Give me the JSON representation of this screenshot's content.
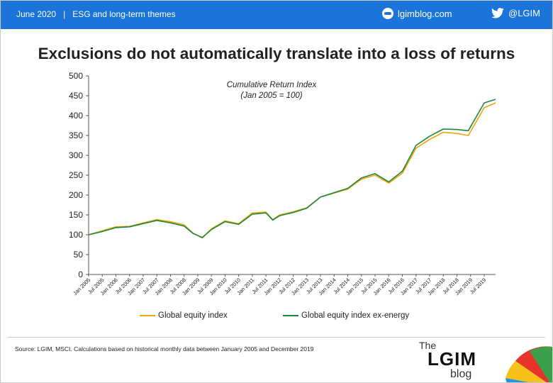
{
  "header": {
    "date": "June 2020",
    "separator": "|",
    "section": "ESG and long-term themes",
    "site": "lgimblog.com",
    "twitter": "@LGIM"
  },
  "title": "Exclusions do not automatically translate into a loss of returns",
  "footer": {
    "source": "Source: LGIM, MSCI. Calculations based on historical monthly data between January 2005 and December 2019",
    "brand_the": "The",
    "brand_lgim": "LGIM",
    "brand_blog": "blog"
  },
  "chart_data": {
    "type": "line",
    "title": "Cumulative Return Index",
    "subtitle": "(Jan 2005 = 100)",
    "xlabel": "",
    "ylabel": "",
    "ylim": [
      0,
      500
    ],
    "yticks": [
      0,
      50,
      100,
      150,
      200,
      250,
      300,
      350,
      400,
      450,
      500
    ],
    "xlim": [
      "2005-01",
      "2019-12"
    ],
    "xtick_labels": [
      "Jan 2005",
      "Jul 2005",
      "Jan 2006",
      "Jul 2006",
      "Jan 2007",
      "Jul 2007",
      "Jan 2008",
      "Jul 2008",
      "Jan 2009",
      "Jul 2009",
      "Jan 2010",
      "Jul 2010",
      "Jan 2011",
      "Jul 2011",
      "Jan 2012",
      "Jul 2012",
      "Jan 2013",
      "Jul 2013",
      "Jan 2014",
      "Jul 2014",
      "Jan 2015",
      "Jul 2015",
      "Jan 2016",
      "Jul 2016",
      "Jan 2017",
      "Jul 2017",
      "Jan 2018",
      "Jul 2018",
      "Jan 2019",
      "Jul 2019"
    ],
    "grid": false,
    "legend_position": "bottom",
    "colors": {
      "global": "#f0a30a",
      "ex_energy": "#1a8a3a"
    },
    "series": [
      {
        "name": "Global equity index",
        "x": [
          "2005-01",
          "2005-07",
          "2006-01",
          "2006-07",
          "2007-01",
          "2007-07",
          "2008-01",
          "2008-07",
          "2008-11",
          "2009-03",
          "2009-07",
          "2010-01",
          "2010-07",
          "2011-01",
          "2011-07",
          "2011-10",
          "2012-01",
          "2012-07",
          "2013-01",
          "2013-07",
          "2014-01",
          "2014-07",
          "2015-01",
          "2015-07",
          "2016-01",
          "2016-07",
          "2017-01",
          "2017-07",
          "2018-01",
          "2018-07",
          "2018-12",
          "2019-07",
          "2019-12"
        ],
        "values": [
          100,
          110,
          120,
          121,
          130,
          138,
          133,
          125,
          104,
          92,
          115,
          135,
          128,
          155,
          157,
          138,
          150,
          158,
          168,
          195,
          205,
          215,
          240,
          250,
          230,
          255,
          318,
          340,
          358,
          355,
          350,
          420,
          432
        ]
      },
      {
        "name": "Global equity index ex-energy",
        "x": [
          "2005-01",
          "2005-07",
          "2006-01",
          "2006-07",
          "2007-01",
          "2007-07",
          "2008-01",
          "2008-07",
          "2008-11",
          "2009-03",
          "2009-07",
          "2010-01",
          "2010-07",
          "2011-01",
          "2011-07",
          "2011-10",
          "2012-01",
          "2012-07",
          "2013-01",
          "2013-07",
          "2014-01",
          "2014-07",
          "2015-01",
          "2015-07",
          "2016-01",
          "2016-07",
          "2017-01",
          "2017-07",
          "2018-01",
          "2018-07",
          "2018-12",
          "2019-07",
          "2019-12"
        ],
        "values": [
          100,
          108,
          118,
          120,
          128,
          136,
          130,
          122,
          103,
          93,
          113,
          133,
          126,
          152,
          155,
          137,
          148,
          156,
          167,
          195,
          206,
          217,
          243,
          254,
          233,
          260,
          325,
          348,
          366,
          365,
          362,
          432,
          441
        ]
      }
    ]
  }
}
